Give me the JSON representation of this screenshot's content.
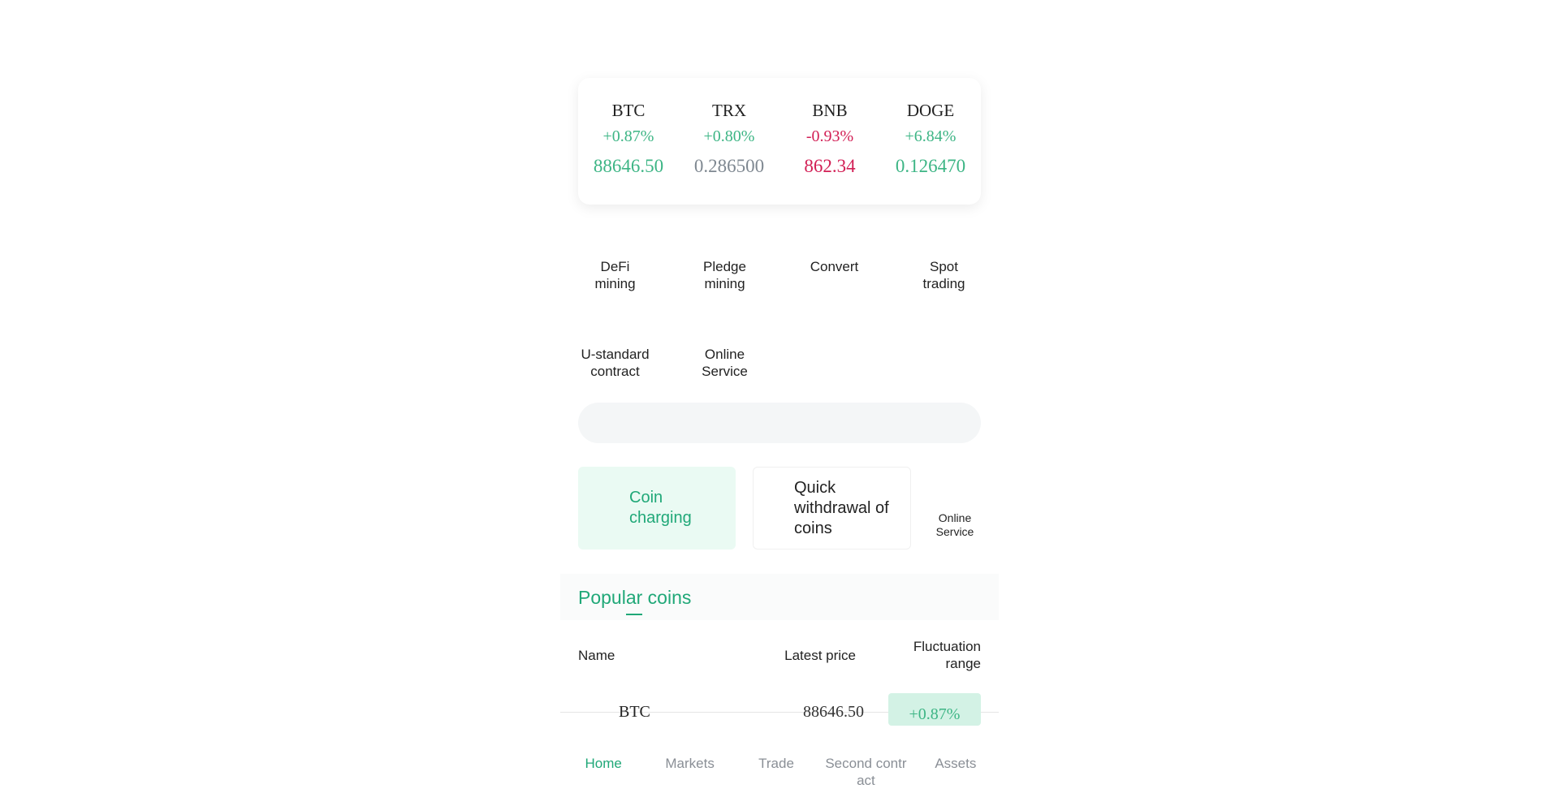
{
  "tickers": [
    {
      "symbol": "BTC",
      "change": "+0.87%",
      "price": "88646.50"
    },
    {
      "symbol": "TRX",
      "change": "+0.80%",
      "price": "0.286500"
    },
    {
      "symbol": "BNB",
      "change": "-0.93%",
      "price": "862.34"
    },
    {
      "symbol": "DOGE",
      "change": "+6.84%",
      "price": "0.126470"
    }
  ],
  "features": [
    {
      "label1": "DeFi",
      "label2": "mining"
    },
    {
      "label1": "Pledge",
      "label2": "mining"
    },
    {
      "label1": "Convert",
      "label2": ""
    },
    {
      "label1": "Spot",
      "label2": "trading"
    },
    {
      "label1": "U-standard",
      "label2": "contract"
    },
    {
      "label1": "Online",
      "label2": "Service"
    }
  ],
  "actions": {
    "coin_charging": "Coin charging",
    "quick_withdrawal": "Quick withdrawal of coins",
    "online_service1": "Online",
    "online_service2": "Service"
  },
  "popular": {
    "tab": "Popular coins",
    "headers": {
      "name": "Name",
      "price": "Latest price",
      "range1": "Fluctuation",
      "range2": "range"
    },
    "rows": [
      {
        "name": "BTC",
        "price": "88646.50",
        "change": "+0.87%"
      }
    ]
  },
  "nav": [
    "Home",
    "Markets",
    "Trade",
    "Second contract",
    "Assets"
  ],
  "colors": {
    "green": "#3db585",
    "accent": "#20a878",
    "red": "#d21f55",
    "gray": "#7f8891"
  }
}
